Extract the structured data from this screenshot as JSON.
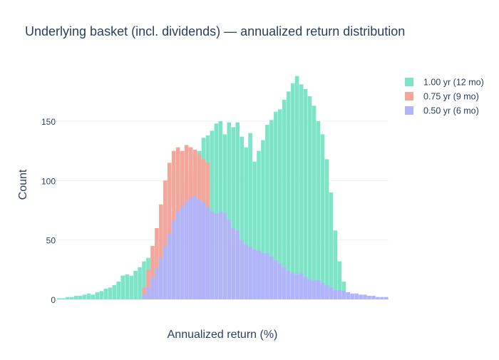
{
  "chart_data": {
    "type": "bar",
    "title": "Underlying basket (incl. dividends) — annualized return distribution",
    "xlabel": "Annualized return (%)",
    "ylabel": "Count",
    "ylim": [
      0,
      192
    ],
    "y_ticks": [
      0,
      50,
      100,
      150
    ],
    "grid": true,
    "legend_position": "top-right",
    "barmode": "overlay",
    "x_tick_labels_note": "",
    "series": [
      {
        "name": "1.00 yr (12 mo)",
        "color": "#7ee4c8",
        "x_range_pct": [
          -22,
          48
        ],
        "counts": [
          1,
          1,
          2,
          2,
          3,
          3,
          4,
          5,
          4,
          6,
          7,
          9,
          10,
          12,
          15,
          20,
          21,
          20,
          24,
          27,
          32,
          35,
          40,
          47,
          50,
          59,
          66,
          71,
          80,
          90,
          98,
          104,
          112,
          125,
          136,
          138,
          142,
          148,
          150,
          139,
          149,
          145,
          149,
          137,
          128,
          140,
          116,
          125,
          134,
          147,
          151,
          158,
          160,
          168,
          175,
          182,
          188,
          181,
          177,
          171,
          163,
          150,
          139,
          118,
          90,
          58,
          32,
          15,
          6,
          1
        ]
      },
      {
        "name": "0.75 yr (9 mo)",
        "color": "#f6a59b",
        "x_range_pct": [
          -2,
          14
        ],
        "counts": [
          10,
          25,
          45,
          60,
          80,
          100,
          115,
          125,
          128,
          125,
          130,
          128,
          126,
          122,
          118,
          115
        ]
      },
      {
        "name": "0.50 yr (6 mo)",
        "color": "#b2b4fb",
        "x_range_pct": [
          -2,
          56
        ],
        "counts": [
          4,
          10,
          18,
          26,
          35,
          45,
          55,
          66,
          74,
          78,
          82,
          85,
          87,
          84,
          82,
          78,
          74,
          72,
          74,
          73,
          67,
          60,
          58,
          50,
          46,
          44,
          42,
          41,
          39,
          39,
          36,
          33,
          30,
          27,
          24,
          22,
          21,
          22,
          19,
          17,
          16,
          16,
          14,
          12,
          10,
          8,
          8,
          7,
          6,
          5,
          5,
          4,
          4,
          3,
          3,
          2,
          2,
          2
        ]
      }
    ]
  }
}
